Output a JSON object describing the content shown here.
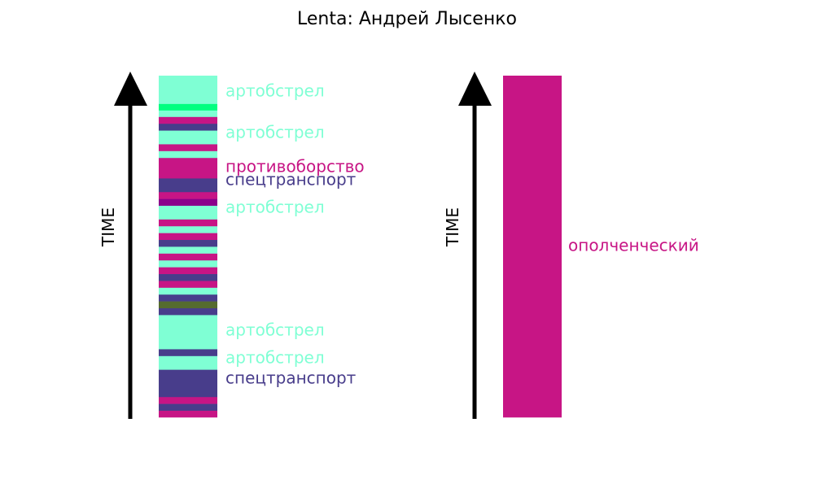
{
  "chart_data": {
    "type": "bar",
    "title": "Lenta: Андрей Лысенко",
    "axis_label": "TIME",
    "colors": {
      "artobstrel": "#7fffd4",
      "artobstrel_bright": "#00ff7f",
      "protivoborstvo": "#c71585",
      "spectransport": "#483d8b",
      "purple": "#8b008b",
      "olive": "#556b2f",
      "opolchenchesky": "#c71585"
    },
    "panels": [
      {
        "name": "left",
        "segments": [
          {
            "c": "artobstrel",
            "s": 0.0,
            "e": 0.083
          },
          {
            "c": "artobstrel_bright",
            "s": 0.083,
            "e": 0.102
          },
          {
            "c": "artobstrel",
            "s": 0.102,
            "e": 0.121
          },
          {
            "c": "protivoborstvo",
            "s": 0.121,
            "e": 0.141
          },
          {
            "c": "spectransport",
            "s": 0.141,
            "e": 0.161
          },
          {
            "c": "artobstrel",
            "s": 0.161,
            "e": 0.201
          },
          {
            "c": "protivoborstvo",
            "s": 0.201,
            "e": 0.221
          },
          {
            "c": "artobstrel",
            "s": 0.221,
            "e": 0.241
          },
          {
            "c": "protivoborstvo",
            "s": 0.241,
            "e": 0.301
          },
          {
            "c": "spectransport",
            "s": 0.301,
            "e": 0.341
          },
          {
            "c": "protivoborstvo",
            "s": 0.341,
            "e": 0.361
          },
          {
            "c": "purple",
            "s": 0.361,
            "e": 0.381
          },
          {
            "c": "artobstrel",
            "s": 0.381,
            "e": 0.421
          },
          {
            "c": "protivoborstvo",
            "s": 0.421,
            "e": 0.441
          },
          {
            "c": "artobstrel",
            "s": 0.441,
            "e": 0.461
          },
          {
            "c": "protivoborstvo",
            "s": 0.461,
            "e": 0.481
          },
          {
            "c": "spectransport",
            "s": 0.481,
            "e": 0.501
          },
          {
            "c": "artobstrel",
            "s": 0.501,
            "e": 0.521
          },
          {
            "c": "protivoborstvo",
            "s": 0.521,
            "e": 0.541
          },
          {
            "c": "artobstrel",
            "s": 0.541,
            "e": 0.561
          },
          {
            "c": "protivoborstvo",
            "s": 0.561,
            "e": 0.581
          },
          {
            "c": "spectransport",
            "s": 0.581,
            "e": 0.601
          },
          {
            "c": "protivoborstvo",
            "s": 0.601,
            "e": 0.621
          },
          {
            "c": "artobstrel",
            "s": 0.621,
            "e": 0.641
          },
          {
            "c": "spectransport",
            "s": 0.641,
            "e": 0.661
          },
          {
            "c": "olive",
            "s": 0.661,
            "e": 0.681
          },
          {
            "c": "spectransport",
            "s": 0.681,
            "e": 0.701
          },
          {
            "c": "artobstrel",
            "s": 0.701,
            "e": 0.801
          },
          {
            "c": "spectransport",
            "s": 0.801,
            "e": 0.821
          },
          {
            "c": "artobstrel",
            "s": 0.821,
            "e": 0.861
          },
          {
            "c": "spectransport",
            "s": 0.861,
            "e": 0.941
          },
          {
            "c": "protivoborstvo",
            "s": 0.941,
            "e": 0.961
          },
          {
            "c": "spectransport",
            "s": 0.961,
            "e": 0.981
          },
          {
            "c": "protivoborstvo",
            "s": 0.981,
            "e": 1.0
          }
        ],
        "labels": [
          {
            "text": "артобстрел",
            "c": "artobstrel",
            "at": 0.048
          },
          {
            "text": "артобстрел",
            "c": "artobstrel",
            "at": 0.169
          },
          {
            "text": "противоборство",
            "c": "protivoborstvo",
            "at": 0.269
          },
          {
            "text": "спецтранспорт",
            "c": "spectransport",
            "at": 0.307
          },
          {
            "text": "артобстрел",
            "c": "artobstrel",
            "at": 0.388
          },
          {
            "text": "артобстрел",
            "c": "artobstrel",
            "at": 0.748
          },
          {
            "text": "артобстрел",
            "c": "artobstrel",
            "at": 0.829
          },
          {
            "text": "спецтранспорт",
            "c": "spectransport",
            "at": 0.888
          }
        ]
      },
      {
        "name": "right",
        "segments": [
          {
            "c": "opolchenchesky",
            "s": 0.0,
            "e": 1.0
          }
        ],
        "labels": [
          {
            "text": "ополченческий",
            "c": "opolchenchesky",
            "at": 0.5
          }
        ]
      }
    ]
  }
}
